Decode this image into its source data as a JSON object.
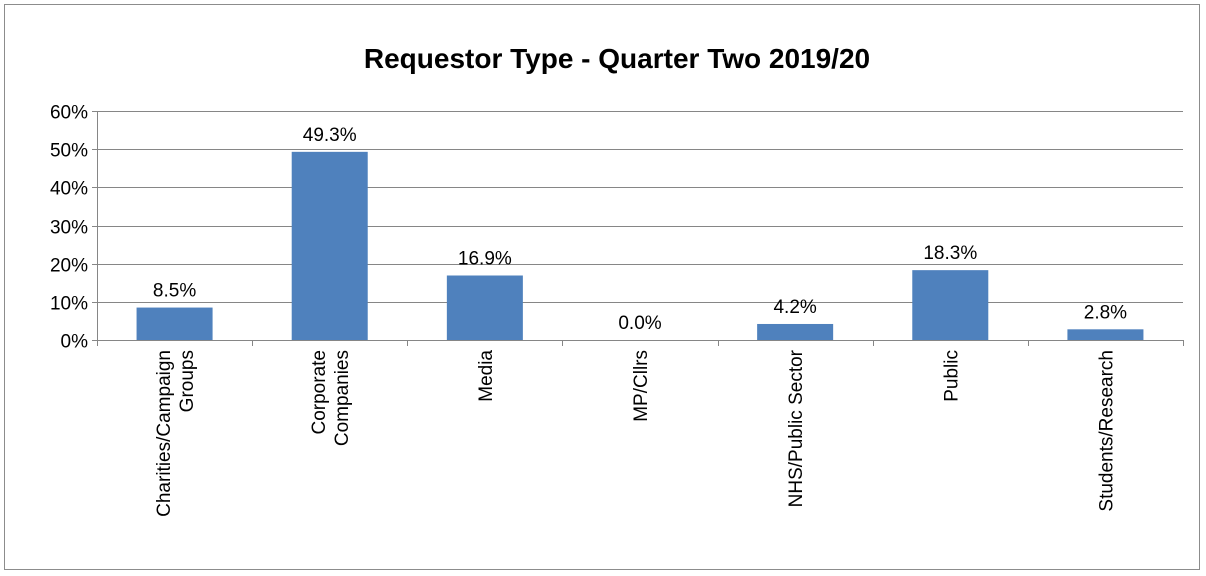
{
  "chart_data": {
    "type": "bar",
    "title": "Requestor Type - Quarter Two 2019/20",
    "xlabel": "",
    "ylabel": "",
    "categories": [
      [
        "Charities/Campaign",
        "Groups"
      ],
      [
        "Corporate",
        "Companies"
      ],
      [
        "Media"
      ],
      [
        "MP/Cllrs"
      ],
      [
        "NHS/Public Sector"
      ],
      [
        "Public"
      ],
      [
        "Students/Research"
      ]
    ],
    "values": [
      8.5,
      49.3,
      16.9,
      0.0,
      4.2,
      18.3,
      2.8
    ],
    "data_labels": [
      "8.5%",
      "49.3%",
      "16.9%",
      "0.0%",
      "4.2%",
      "18.3%",
      "2.8%"
    ],
    "ylim": [
      0,
      60
    ],
    "yticks": [
      0,
      10,
      20,
      30,
      40,
      50,
      60
    ],
    "ytick_labels": [
      "0%",
      "10%",
      "20%",
      "30%",
      "40%",
      "50%",
      "60%"
    ],
    "grid": true,
    "legend": "none",
    "colors": {
      "bar": "#4f81bd",
      "gridline": "#868686",
      "axis": "#868686"
    }
  }
}
